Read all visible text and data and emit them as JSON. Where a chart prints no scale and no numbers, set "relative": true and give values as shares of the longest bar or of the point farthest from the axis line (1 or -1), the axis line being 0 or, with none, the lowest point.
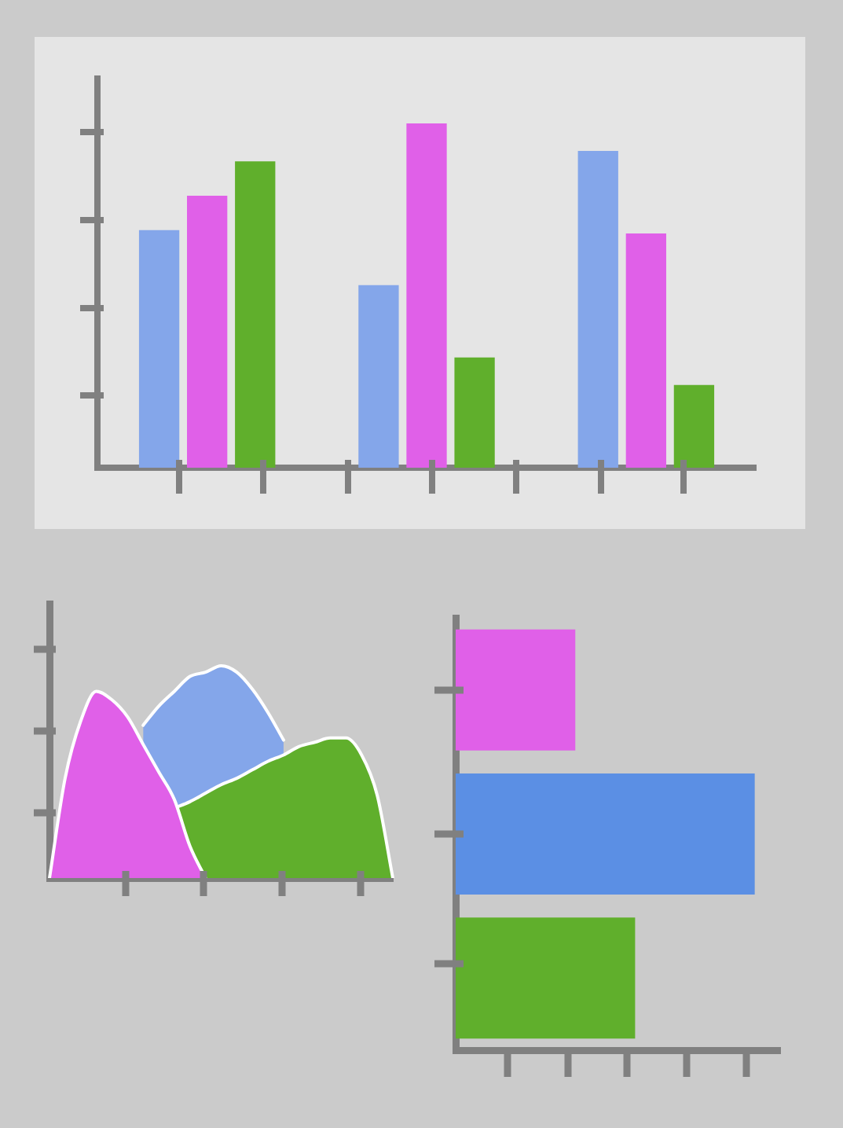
{
  "chart_data": [
    {
      "type": "bar",
      "relative": true,
      "categories": [
        null,
        null,
        null
      ],
      "series": [
        {
          "color": "#84a6ea",
          "values": [
            0.69,
            0.53,
            0.92
          ]
        },
        {
          "color": "#e060e8",
          "values": [
            0.79,
            1,
            0.68
          ]
        },
        {
          "color": "#60af2c",
          "values": [
            0.89,
            0.32,
            0.24
          ]
        }
      ]
    },
    {
      "type": "area",
      "relative": true,
      "categories": [
        null,
        null,
        null,
        null,
        null,
        null,
        null,
        null,
        null,
        null,
        null,
        null,
        null,
        null,
        null,
        null,
        null,
        null,
        null,
        null,
        null,
        null,
        null
      ],
      "series": [
        {
          "color": "#e060e8",
          "values": [
            0,
            0.47,
            0.74,
            0.88,
            0.84,
            0.76,
            0.63,
            0.5,
            0.37,
            0.15,
            0,
            null,
            null,
            null,
            null,
            null,
            null,
            null,
            null,
            null,
            null,
            null,
            null
          ]
        },
        {
          "color": "#60af2c",
          "values": [
            null,
            null,
            null,
            null,
            null,
            null,
            null,
            null,
            0.33,
            0.36,
            0.4,
            0.44,
            0.47,
            0.51,
            0.55,
            0.58,
            0.62,
            0.64,
            0.66,
            0.66,
            0.58,
            0.39,
            0
          ]
        },
        {
          "color": "#84a6ea",
          "values": [
            null,
            null,
            null,
            null,
            null,
            null,
            0.72,
            0.81,
            0.88,
            0.95,
            0.97,
            1,
            0.97,
            0.89,
            0.78,
            0.65,
            null,
            null,
            null,
            null,
            null,
            null,
            null
          ]
        }
      ]
    },
    {
      "type": "bar",
      "orientation": "horizontal",
      "relative": true,
      "categories": [
        null,
        null,
        null
      ],
      "values": [
        0.4,
        1,
        0.6
      ],
      "colors": [
        "#e060e8",
        "#5b8fe4",
        "#60af2c"
      ]
    }
  ]
}
